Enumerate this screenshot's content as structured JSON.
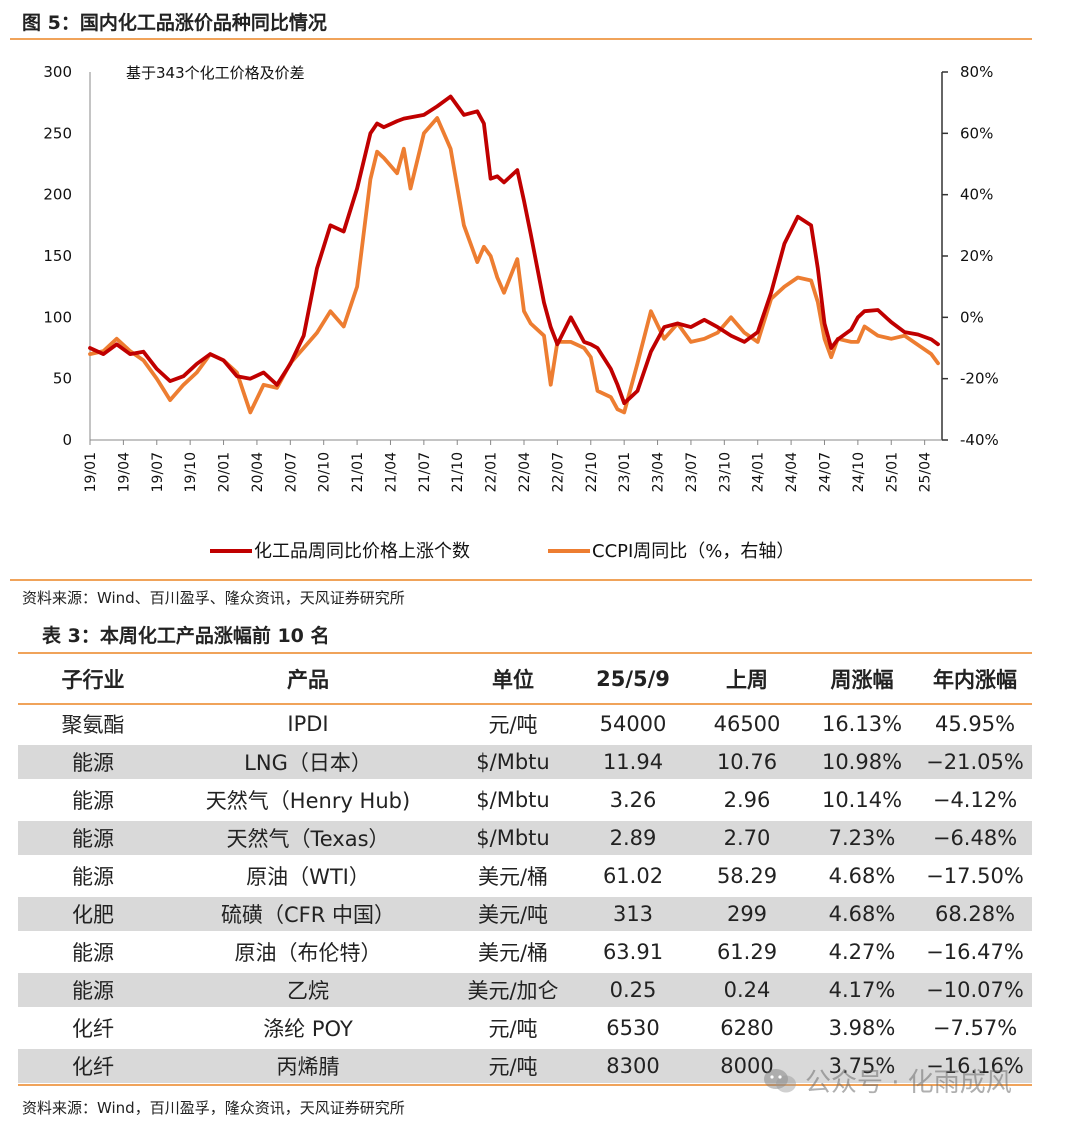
{
  "figure": {
    "title": "图 5：国内化工品涨价品种同比情况",
    "annotation": "基于343个化工价格及价差",
    "source": "资料来源：Wind、百川盈孚、隆众资讯，天风证券研究所",
    "colors": {
      "series_dark_red": "#c00000",
      "series_orange": "#ed7d31",
      "rule": "#f0a35a"
    }
  },
  "chart_data": {
    "type": "line",
    "title": "",
    "xlabel": "",
    "ylabel": "",
    "x_ticks": [
      "19/01",
      "19/04",
      "19/07",
      "19/10",
      "20/01",
      "20/04",
      "20/07",
      "20/10",
      "21/01",
      "21/04",
      "21/07",
      "21/10",
      "22/01",
      "22/04",
      "22/07",
      "22/10",
      "23/01",
      "23/04",
      "23/07",
      "23/10",
      "24/01",
      "24/04",
      "24/07",
      "24/10",
      "25/01",
      "25/04"
    ],
    "ylim_left": [
      0,
      300
    ],
    "y_ticks_left": [
      "0",
      "50",
      "100",
      "150",
      "200",
      "250",
      "300"
    ],
    "ylim_right": [
      -40,
      80
    ],
    "y_ticks_right": [
      "-40%",
      "-20%",
      "0%",
      "20%",
      "40%",
      "60%",
      "80%"
    ],
    "legend_position": "bottom",
    "grid": false,
    "series": [
      {
        "name": "化工品周同比价格上涨个数",
        "axis": "left",
        "color": "#c00000",
        "x": [
          2019.0,
          2019.1,
          2019.2,
          2019.3,
          2019.4,
          2019.5,
          2019.6,
          2019.7,
          2019.8,
          2019.9,
          2020.0,
          2020.1,
          2020.2,
          2020.3,
          2020.4,
          2020.5,
          2020.6,
          2020.7,
          2020.8,
          2020.9,
          2021.0,
          2021.1,
          2021.15,
          2021.2,
          2021.3,
          2021.35,
          2021.4,
          2021.5,
          2021.6,
          2021.7,
          2021.8,
          2021.9,
          2021.95,
          2022.0,
          2022.05,
          2022.1,
          2022.2,
          2022.25,
          2022.3,
          2022.4,
          2022.45,
          2022.5,
          2022.6,
          2022.7,
          2022.75,
          2022.8,
          2022.9,
          2022.95,
          2023.0,
          2023.1,
          2023.2,
          2023.3,
          2023.4,
          2023.5,
          2023.6,
          2023.7,
          2023.8,
          2023.9,
          2024.0,
          2024.1,
          2024.2,
          2024.3,
          2024.4,
          2024.45,
          2024.5,
          2024.55,
          2024.6,
          2024.7,
          2024.75,
          2024.8,
          2024.9,
          2025.0,
          2025.1,
          2025.2,
          2025.3,
          2025.35
        ],
        "values": [
          75,
          70,
          78,
          70,
          72,
          58,
          48,
          52,
          62,
          70,
          65,
          52,
          50,
          55,
          45,
          62,
          85,
          140,
          175,
          170,
          205,
          250,
          258,
          255,
          260,
          262,
          263,
          265,
          272,
          280,
          265,
          268,
          258,
          213,
          215,
          210,
          220,
          195,
          168,
          112,
          92,
          78,
          100,
          80,
          78,
          75,
          58,
          45,
          30,
          40,
          72,
          92,
          95,
          92,
          98,
          92,
          85,
          80,
          88,
          120,
          160,
          182,
          175,
          140,
          95,
          75,
          82,
          90,
          100,
          105,
          106,
          96,
          88,
          86,
          82,
          78
        ]
      },
      {
        "name": "CCPI周同比（%，右轴）",
        "axis": "right",
        "color": "#ed7d31",
        "x": [
          2019.0,
          2019.1,
          2019.2,
          2019.3,
          2019.4,
          2019.5,
          2019.6,
          2019.7,
          2019.8,
          2019.9,
          2020.0,
          2020.1,
          2020.2,
          2020.3,
          2020.4,
          2020.5,
          2020.6,
          2020.7,
          2020.8,
          2020.9,
          2021.0,
          2021.1,
          2021.15,
          2021.2,
          2021.3,
          2021.35,
          2021.4,
          2021.5,
          2021.6,
          2021.7,
          2021.8,
          2021.9,
          2021.95,
          2022.0,
          2022.05,
          2022.1,
          2022.2,
          2022.25,
          2022.3,
          2022.4,
          2022.45,
          2022.5,
          2022.6,
          2022.7,
          2022.75,
          2022.8,
          2022.9,
          2022.95,
          2023.0,
          2023.1,
          2023.2,
          2023.3,
          2023.4,
          2023.5,
          2023.6,
          2023.7,
          2023.8,
          2023.9,
          2024.0,
          2024.1,
          2024.2,
          2024.3,
          2024.4,
          2024.45,
          2024.5,
          2024.55,
          2024.6,
          2024.7,
          2024.75,
          2024.8,
          2024.9,
          2025.0,
          2025.1,
          2025.2,
          2025.3,
          2025.35
        ],
        "values": [
          -12,
          -11,
          -7,
          -11,
          -14,
          -20,
          -27,
          -22,
          -18,
          -12,
          -14,
          -18,
          -31,
          -22,
          -23,
          -15,
          -10,
          -5,
          2,
          -3,
          10,
          45,
          54,
          52,
          47,
          55,
          42,
          60,
          65,
          55,
          30,
          18,
          23,
          20,
          13,
          8,
          19,
          2,
          -2,
          -6,
          -22,
          -8,
          -8,
          -10,
          -13,
          -24,
          -26,
          -30,
          -31,
          -15,
          2,
          -7,
          -2,
          -8,
          -7,
          -5,
          0,
          -5,
          -8,
          6,
          10,
          13,
          12,
          5,
          -7,
          -13,
          -7,
          -8,
          -8,
          -3,
          -6,
          -7,
          -6,
          -9,
          -12,
          -15
        ]
      }
    ]
  },
  "table": {
    "title": "表 3：本周化工产品涨幅前 10 名",
    "headers": [
      "子行业",
      "产品",
      "单位",
      "25/5/9",
      "上周",
      "周涨幅",
      "年内涨幅"
    ],
    "rows": [
      [
        "聚氨酯",
        "IPDI",
        "元/吨",
        "54000",
        "46500",
        "16.13%",
        "45.95%"
      ],
      [
        "能源",
        "LNG（日本）",
        "$/Mbtu",
        "11.94",
        "10.76",
        "10.98%",
        "−21.05%"
      ],
      [
        "能源",
        "天然气（Henry Hub)",
        "$/Mbtu",
        "3.26",
        "2.96",
        "10.14%",
        "−4.12%"
      ],
      [
        "能源",
        "天然气（Texas）",
        "$/Mbtu",
        "2.89",
        "2.70",
        "7.23%",
        "−6.48%"
      ],
      [
        "能源",
        "原油（WTI）",
        "美元/桶",
        "61.02",
        "58.29",
        "4.68%",
        "−17.50%"
      ],
      [
        "化肥",
        "硫磺（CFR 中国）",
        "美元/吨",
        "313",
        "299",
        "4.68%",
        "68.28%"
      ],
      [
        "能源",
        "原油（布伦特）",
        "美元/桶",
        "63.91",
        "61.29",
        "4.27%",
        "−16.47%"
      ],
      [
        "能源",
        "乙烷",
        "美元/加仑",
        "0.25",
        "0.24",
        "4.17%",
        "−10.07%"
      ],
      [
        "化纤",
        "涤纶 POY",
        "元/吨",
        "6530",
        "6280",
        "3.98%",
        "−7.57%"
      ],
      [
        "化纤",
        "丙烯腈",
        "元/吨",
        "8300",
        "8000",
        "3.75%",
        "−16.16%"
      ]
    ],
    "source": "资料来源：Wind，百川盈孚，隆众资讯，天风证券研究所"
  },
  "watermark": {
    "text": "公众号 · 化雨成风",
    "icon": "wechat-icon"
  }
}
